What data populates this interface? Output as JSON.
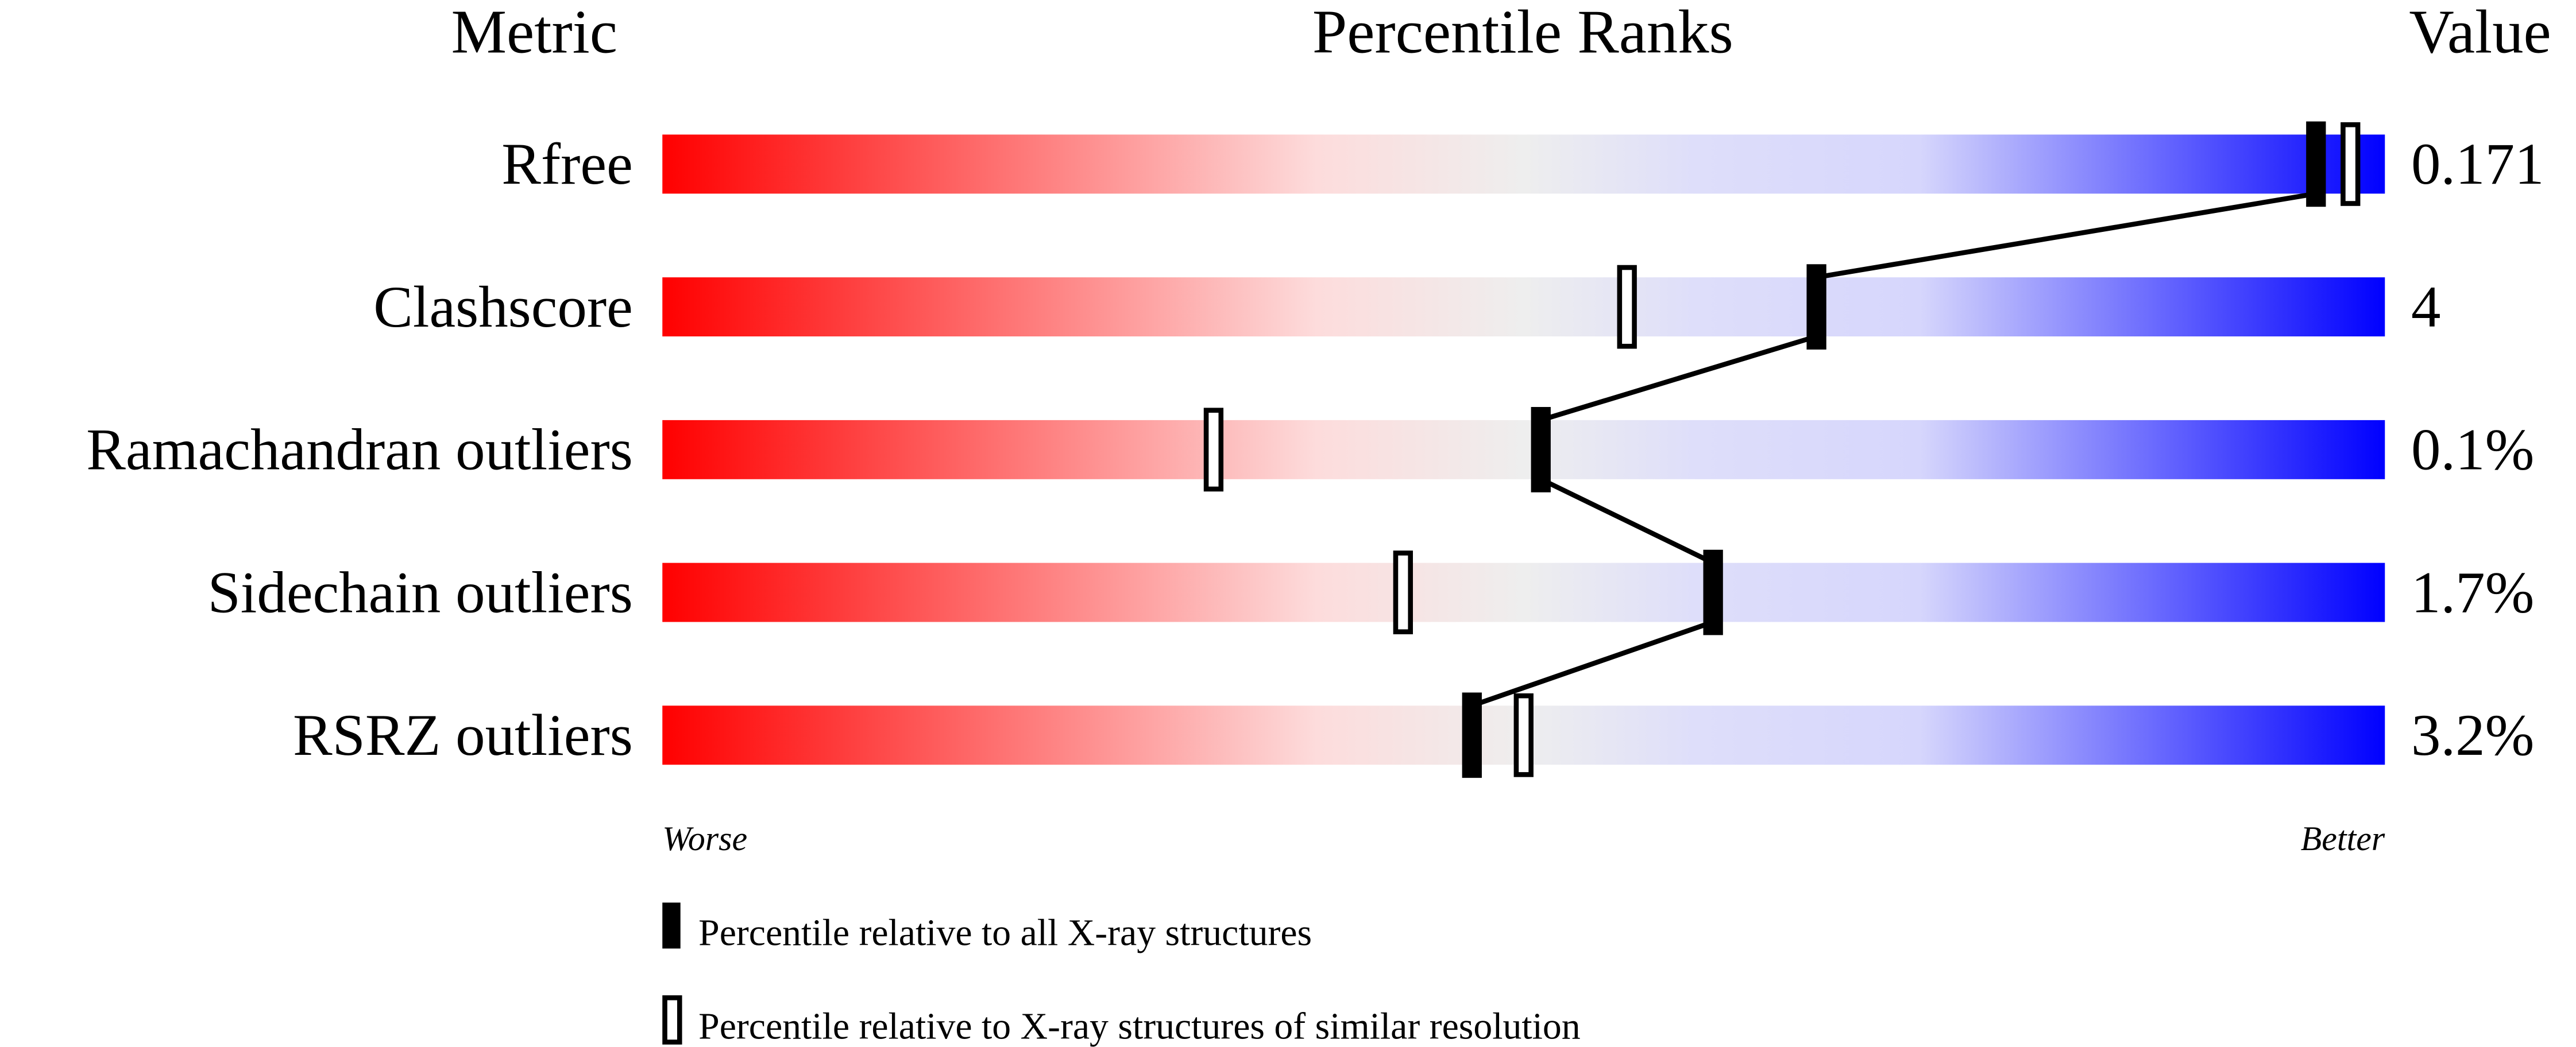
{
  "chart_data": {
    "type": "percentile-ranks",
    "headers": {
      "metric": "Metric",
      "ranks": "Percentile Ranks",
      "value": "Value"
    },
    "xlim": [
      0,
      100
    ],
    "axis_labels": {
      "left": "Worse",
      "right": "Better"
    },
    "gradient_colors": [
      "#ff0000",
      "#fddcdc",
      "#eeeeee",
      "#dcdcfa",
      "#0000ff"
    ],
    "metrics": [
      {
        "name": "Rfree",
        "value": "0.171",
        "percentile_all": 96,
        "percentile_similar": 98
      },
      {
        "name": "Clashscore",
        "value": "4",
        "percentile_all": 67,
        "percentile_similar": 56
      },
      {
        "name": "Ramachandran outliers",
        "value": "0.1%",
        "percentile_all": 51,
        "percentile_similar": 32
      },
      {
        "name": "Sidechain outliers",
        "value": "1.7%",
        "percentile_all": 61,
        "percentile_similar": 43
      },
      {
        "name": "RSRZ outliers",
        "value": "3.2%",
        "percentile_all": 47,
        "percentile_similar": 50
      }
    ],
    "legend": [
      {
        "marker": "filled",
        "label": "Percentile relative to all X-ray structures"
      },
      {
        "marker": "open",
        "label": "Percentile relative to X-ray structures of similar resolution"
      }
    ]
  }
}
